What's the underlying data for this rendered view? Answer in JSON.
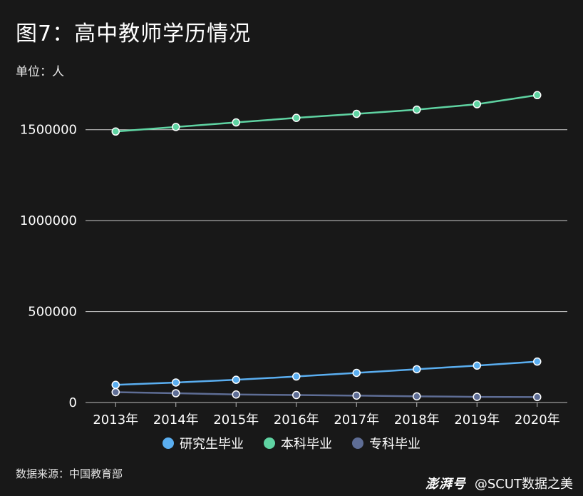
{
  "title": "图7：高中教师学历情况",
  "unit_label": "单位：人",
  "source": "数据来源：中国教育部",
  "watermark": {
    "logo": "澎湃号",
    "account": "@SCUT数据之美"
  },
  "colors": {
    "background": "#181818",
    "grid": "#cfcfcf",
    "axis": "#bdbdbd"
  },
  "chart_data": {
    "type": "line",
    "title": "图7：高中教师学历情况",
    "x": [
      "2013年",
      "2014年",
      "2015年",
      "2016年",
      "2017年",
      "2018年",
      "2019年",
      "2020年"
    ],
    "ylim": [
      0,
      1750000
    ],
    "yticks": [
      0,
      500000,
      1000000,
      1500000
    ],
    "ytick_labels": [
      "0",
      "500000",
      "1000000",
      "1500000"
    ],
    "grid": true,
    "legend_position": "bottom",
    "series": [
      {
        "name": "研究生毕业",
        "color": "#5aaef0",
        "values": [
          97000,
          110000,
          125000,
          143000,
          163000,
          183000,
          203000,
          225000
        ]
      },
      {
        "name": "本科毕业",
        "color": "#5fd3a2",
        "values": [
          1490000,
          1515000,
          1540000,
          1565000,
          1587000,
          1610000,
          1640000,
          1690000
        ]
      },
      {
        "name": "专科毕业",
        "color": "#5e6d95",
        "values": [
          57000,
          51000,
          44000,
          41000,
          38000,
          34000,
          31000,
          30000
        ]
      }
    ]
  }
}
